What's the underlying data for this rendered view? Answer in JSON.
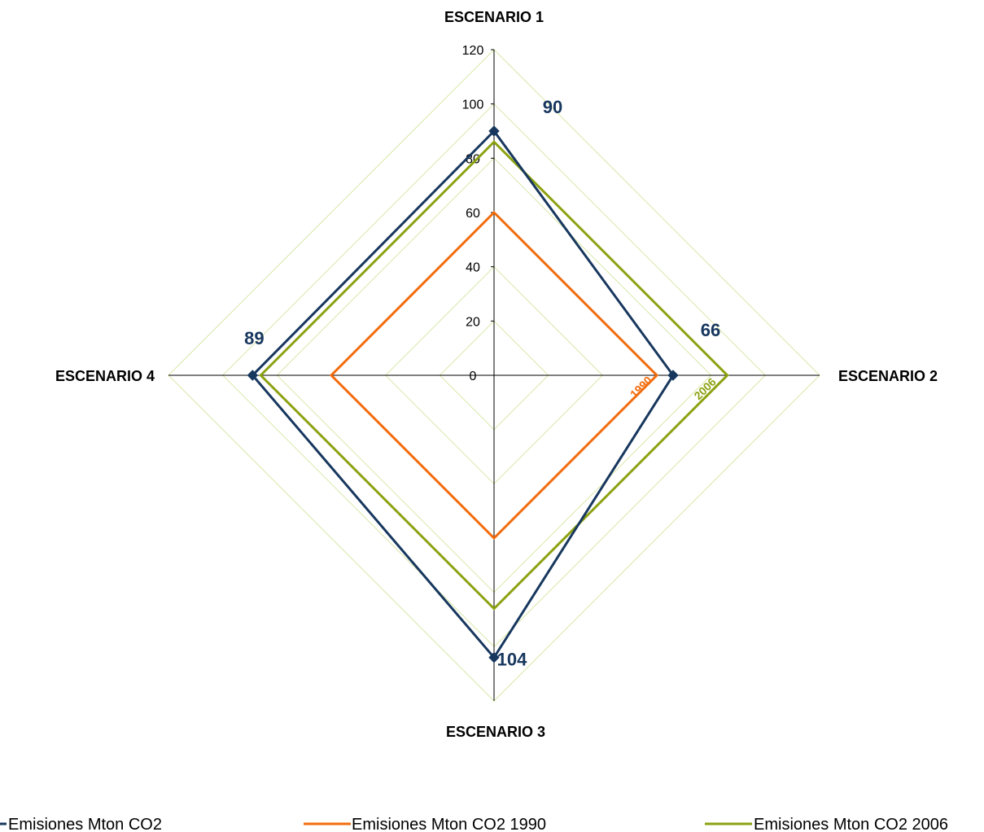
{
  "chart_data": {
    "type": "radar",
    "categories": [
      "ESCENARIO 1",
      "ESCENARIO 2",
      "ESCENARIO 3",
      "ESCENARIO 4"
    ],
    "rlim": [
      0,
      120
    ],
    "ticks": [
      "0",
      "20",
      "40",
      "60",
      "80",
      "100",
      "120"
    ],
    "tick_values": [
      0,
      20,
      40,
      60,
      80,
      100,
      120
    ],
    "grid": true,
    "legend_position": "bottom",
    "series": [
      {
        "name": "Emisiones Mton CO2",
        "values": [
          90,
          66,
          104,
          89
        ],
        "color": "#17375E",
        "markers": true,
        "labels": [
          "90",
          "66",
          "104",
          "89"
        ]
      },
      {
        "name": "Emisiones Mton CO2 1990",
        "values": [
          60,
          60,
          60,
          60
        ],
        "color": "#F26C0D",
        "markers": false,
        "inline_label": "1990"
      },
      {
        "name": "Emisiones Mton CO2 2006",
        "values": [
          86,
          86,
          86,
          86
        ],
        "color": "#8DA212",
        "markers": false,
        "inline_label": "2006"
      }
    ]
  }
}
